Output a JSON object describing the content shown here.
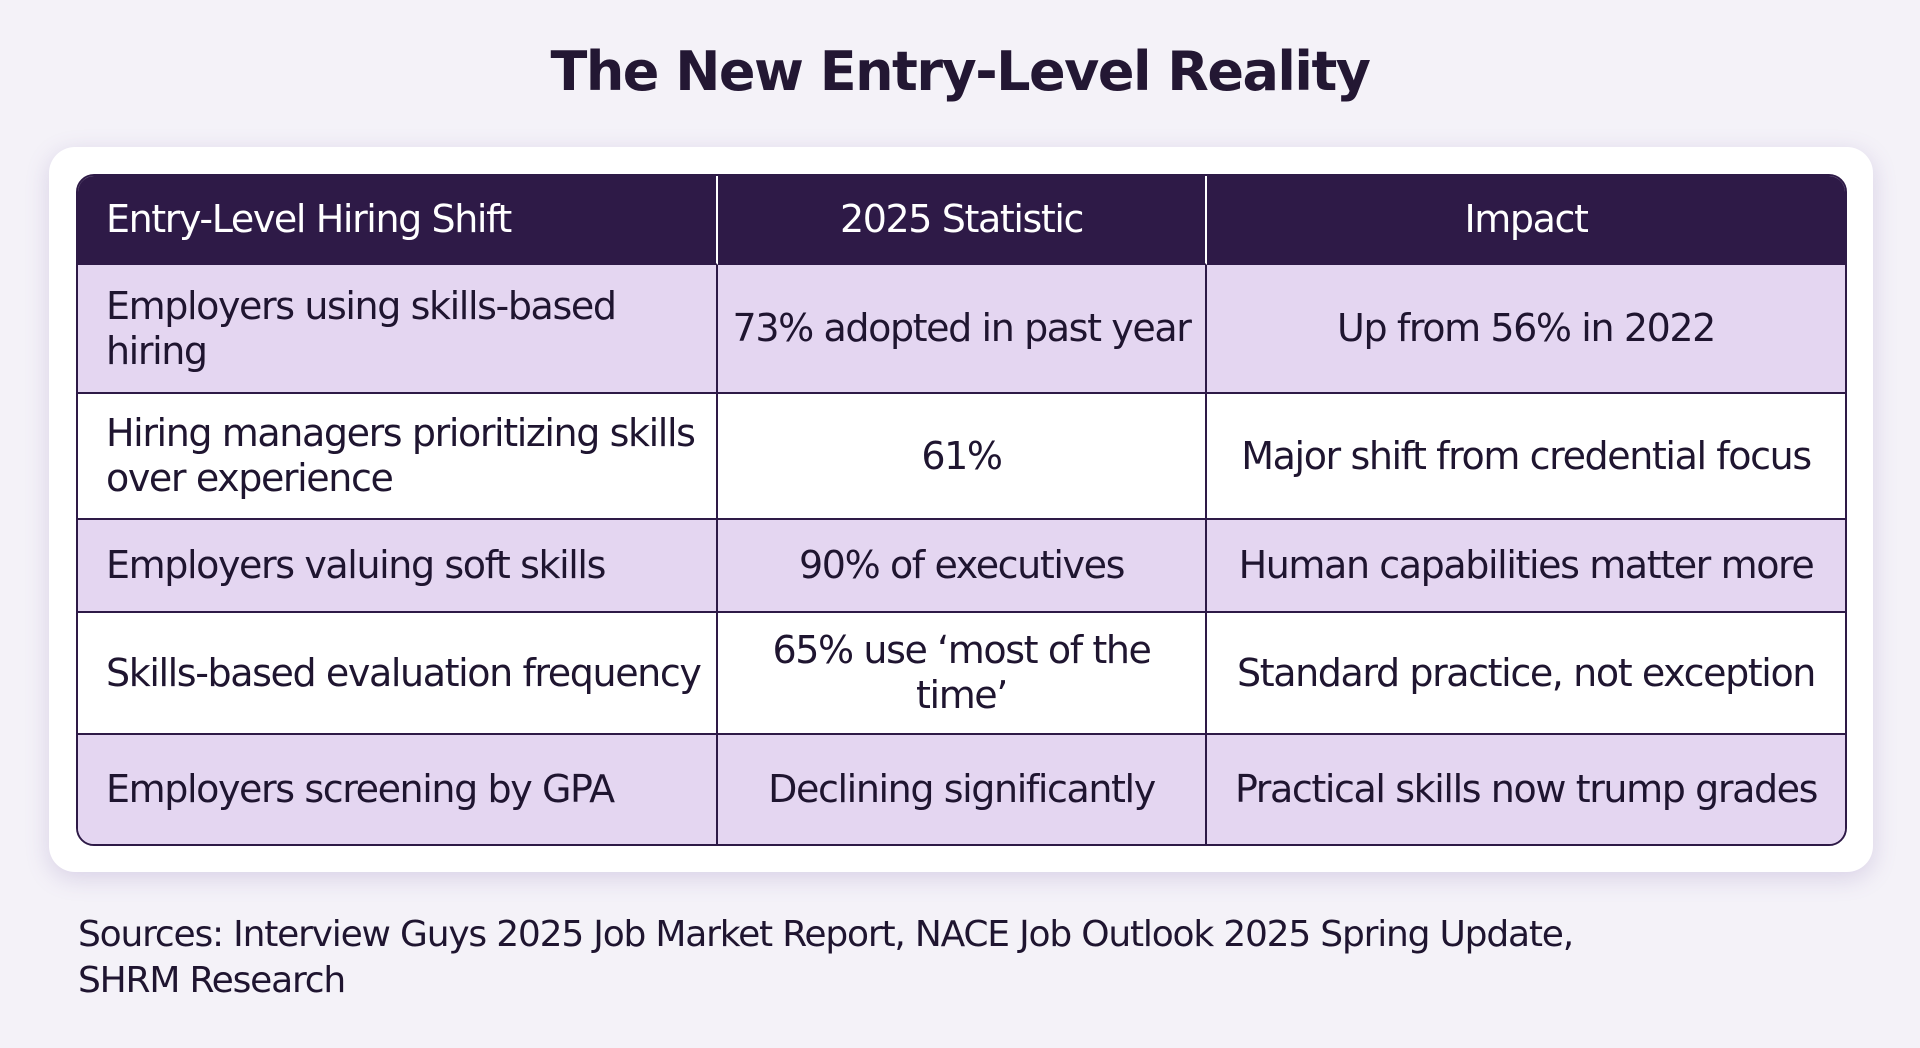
{
  "header": {
    "title": "The New Entry-Level Reality"
  },
  "table": {
    "columns": [
      "Entry-Level Hiring Shift",
      "2025 Statistic",
      "Impact"
    ],
    "rows": [
      [
        "Employers using skills-based hiring",
        "73% adopted in past year",
        "Up from 56% in 2022"
      ],
      [
        "Hiring managers prioritizing skills over experience",
        "61%",
        "Major shift from credential focus"
      ],
      [
        "Employers valuing soft skills",
        "90% of executives",
        "Human capabilities matter more"
      ],
      [
        "Skills-based evaluation frequency",
        "65% use ‘most of the time’",
        "Standard practice, not exception"
      ],
      [
        "Employers screening by GPA",
        "Declining significantly",
        "Practical skills now trump grades"
      ]
    ]
  },
  "footer": {
    "sources": "Sources: Interview Guys 2025 Job Market Report, NACE Job Outlook 2025 Spring Update, SHRM Research"
  }
}
